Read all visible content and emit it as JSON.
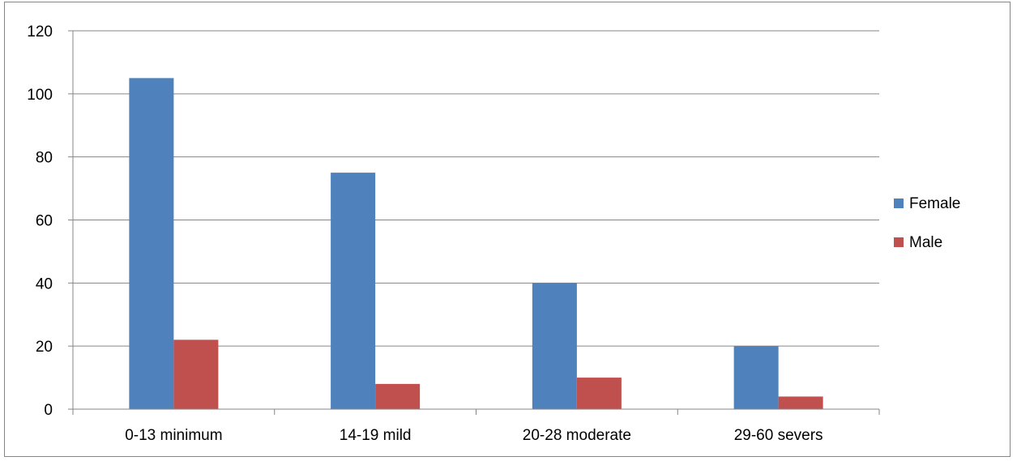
{
  "chart_data": {
    "type": "bar",
    "title": "",
    "xlabel": "",
    "ylabel": "",
    "categories": [
      "0-13 minimum",
      "14-19 mild",
      "20-28 moderate",
      "29-60 severs"
    ],
    "series": [
      {
        "name": "Female",
        "values": [
          105,
          75,
          40,
          20
        ],
        "color": "#4F81BD"
      },
      {
        "name": "Male",
        "values": [
          22,
          8,
          10,
          4
        ],
        "color": "#C0504D"
      }
    ],
    "ylim": [
      0,
      120
    ],
    "yticks": [
      0,
      20,
      40,
      60,
      80,
      100,
      120
    ],
    "grid": true,
    "legend": "right"
  }
}
